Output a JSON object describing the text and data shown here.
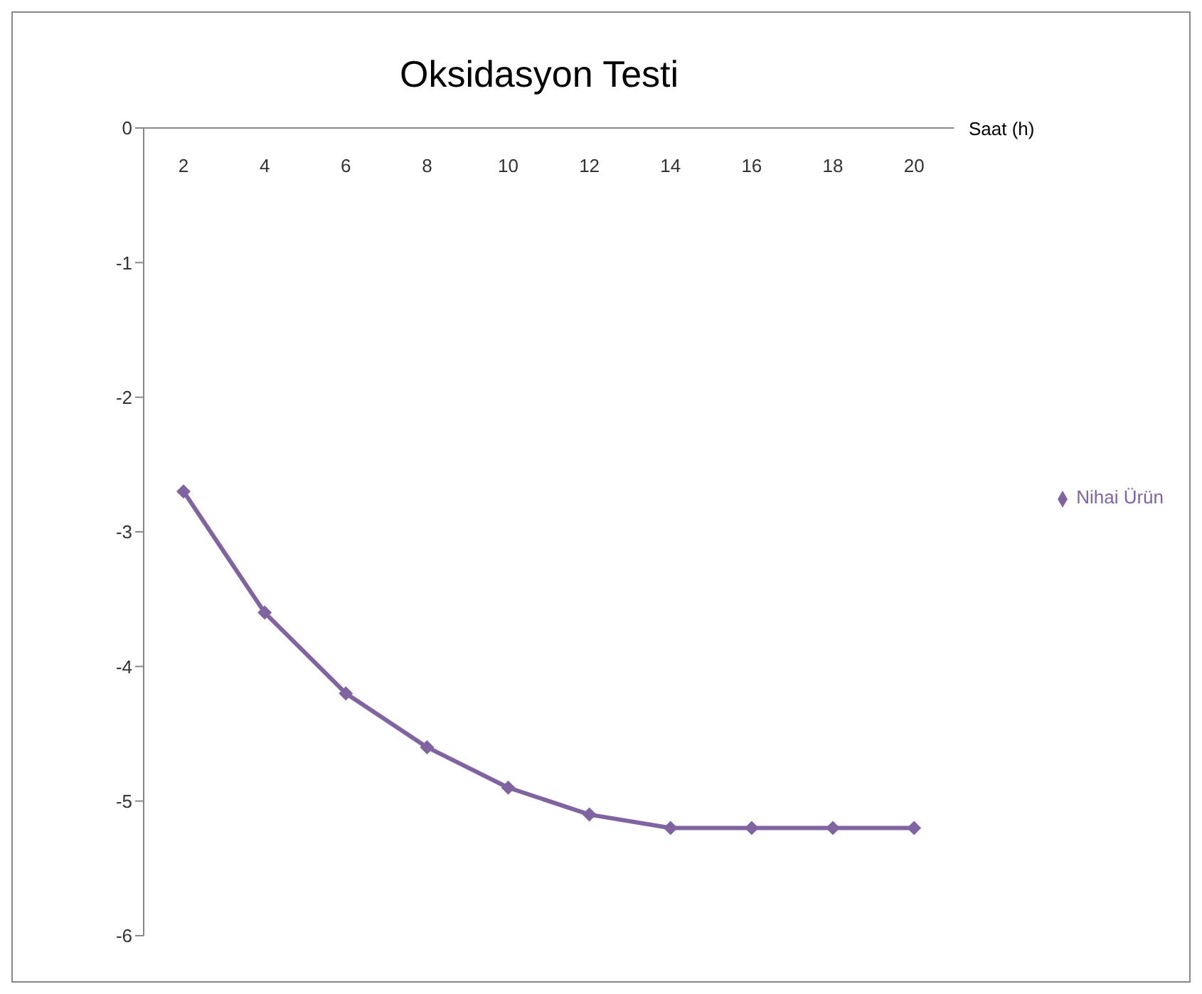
{
  "chart_data": {
    "type": "line",
    "title": "Oksidasyon Testi",
    "xlabel": "Saat (h)",
    "categories": [
      "2",
      "4",
      "6",
      "8",
      "10",
      "12",
      "14",
      "16",
      "18",
      "20"
    ],
    "series": [
      {
        "name": "Nihai Ürün",
        "color": "#8064a2",
        "values": [
          -2.7,
          -3.6,
          -4.2,
          -4.6,
          -4.9,
          -5.1,
          -5.2,
          -5.2,
          -5.2,
          -5.2
        ]
      }
    ],
    "ylim": [
      -6,
      0
    ],
    "yticks": [
      -6,
      -5,
      -4,
      -3,
      -2,
      -1,
      0
    ],
    "grid": false,
    "legend": "right",
    "marker": "diamond",
    "line_style": "solid"
  }
}
